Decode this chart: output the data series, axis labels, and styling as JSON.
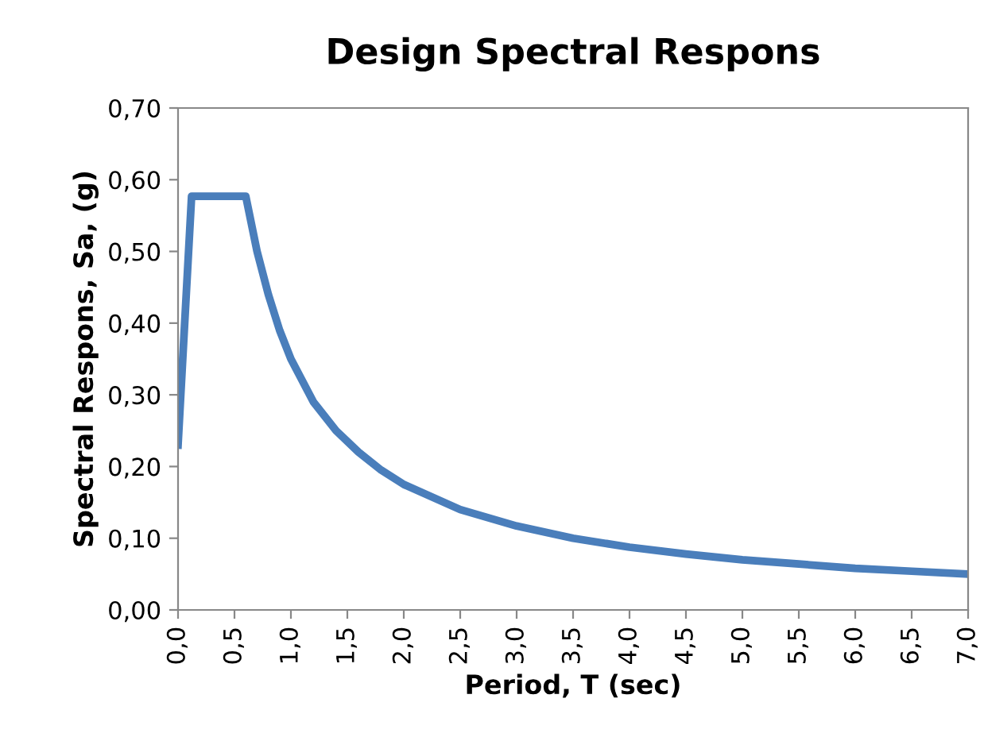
{
  "chart_data": {
    "type": "line",
    "title": "Design Spectral Respons",
    "xlabel": "Period, T (sec)",
    "ylabel": "Spectral Respons, Sa, (g)",
    "series": [
      {
        "color": "#4a7ebb",
        "x": [
          0,
          0.12,
          0.6,
          0.7,
          0.8,
          0.9,
          1.0,
          1.2,
          1.4,
          1.6,
          1.8,
          2.0,
          2.5,
          3.0,
          3.5,
          4.0,
          4.5,
          5.0,
          5.5,
          6.0,
          6.5,
          7.0
        ],
        "values": [
          0.23,
          0.577,
          0.577,
          0.5,
          0.44,
          0.39,
          0.35,
          0.29,
          0.25,
          0.22,
          0.195,
          0.175,
          0.14,
          0.117,
          0.1,
          0.0875,
          0.078,
          0.07,
          0.064,
          0.058,
          0.054,
          0.05
        ]
      }
    ],
    "xlim": [
      0,
      7
    ],
    "xticks": [
      {
        "value": 0,
        "label": "0,0"
      },
      {
        "value": 0.5,
        "label": "0,5"
      },
      {
        "value": 1,
        "label": "1,0"
      },
      {
        "value": 1.5,
        "label": "1,5"
      },
      {
        "value": 2,
        "label": "2,0"
      },
      {
        "value": 2.5,
        "label": "2,5"
      },
      {
        "value": 3,
        "label": "3,0"
      },
      {
        "value": 3.5,
        "label": "3,5"
      },
      {
        "value": 4,
        "label": "4,0"
      },
      {
        "value": 4.5,
        "label": "4,5"
      },
      {
        "value": 5,
        "label": "5,0"
      },
      {
        "value": 5.5,
        "label": "5,5"
      },
      {
        "value": 6,
        "label": "6,0"
      },
      {
        "value": 6.5,
        "label": "6,5"
      },
      {
        "value": 7,
        "label": "7,0"
      }
    ],
    "ylim": [
      0,
      0.7
    ],
    "yticks": [
      {
        "value": 0,
        "label": "0,00"
      },
      {
        "value": 0.1,
        "label": "0,10"
      },
      {
        "value": 0.2,
        "label": "0,20"
      },
      {
        "value": 0.3,
        "label": "0,30"
      },
      {
        "value": 0.4,
        "label": "0,40"
      },
      {
        "value": 0.5,
        "label": "0,50"
      },
      {
        "value": 0.6,
        "label": "0,60"
      },
      {
        "value": 0.7,
        "label": "0,70"
      }
    ],
    "grid": false,
    "legend": false,
    "marker": "none",
    "line_style": "solid"
  }
}
